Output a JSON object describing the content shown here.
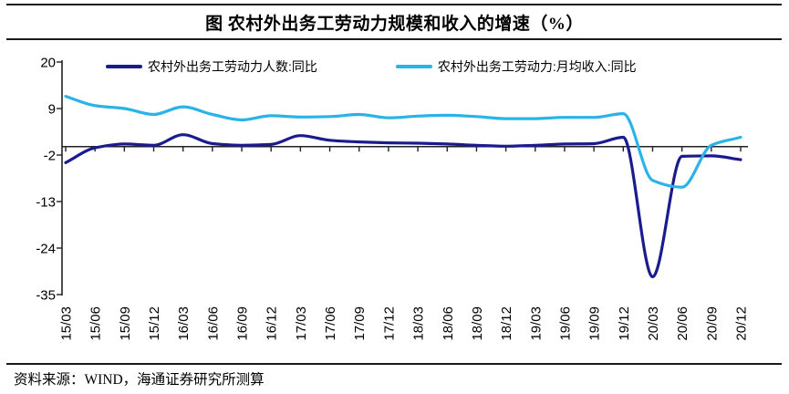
{
  "title": "图 农村外出务工劳动力规模和收入的增速（%）",
  "source_note": "资料来源：WIND，海通证券研究所测算",
  "colors": {
    "workers_line": "#1a1c8e",
    "income_line": "#29b3e6",
    "axis": "#222222",
    "rule": "#1a1a1a"
  },
  "legend": [
    {
      "label": "农村外出务工劳动力人数:同比",
      "color": "#1a1c8e"
    },
    {
      "label": "农村外出务工劳动力:月均收入:同比",
      "color": "#29b3e6"
    }
  ],
  "chart_data": {
    "type": "line",
    "title": "图 农村外出务工劳动力规模和收入的增速（%）",
    "unit": "%",
    "xlabel": "",
    "ylabel": "",
    "ylim": [
      -35,
      20
    ],
    "yticks": [
      20,
      9,
      -2,
      -13,
      -24,
      -35
    ],
    "grid": false,
    "zero_line": true,
    "legend_position": "top",
    "x_label_rotation": -90,
    "categories": [
      "15/03",
      "15/06",
      "15/09",
      "15/12",
      "16/03",
      "16/06",
      "16/09",
      "16/12",
      "17/03",
      "17/06",
      "17/09",
      "17/12",
      "18/03",
      "18/06",
      "18/09",
      "18/12",
      "19/03",
      "19/06",
      "19/09",
      "19/12",
      "20/03",
      "20/06",
      "20/09",
      "20/12"
    ],
    "series": [
      {
        "name": "农村外出务工劳动力人数:同比",
        "color": "#1a1c8e",
        "values": [
          -3.8,
          -0.3,
          0.6,
          0.3,
          2.8,
          0.7,
          0.3,
          0.5,
          2.6,
          1.5,
          1.1,
          0.9,
          0.8,
          0.6,
          0.3,
          0.1,
          0.3,
          0.6,
          0.7,
          2.2,
          -30.8,
          -2.3,
          -2.2,
          -3.1
        ]
      },
      {
        "name": "农村外出务工劳动力:月均收入:同比",
        "color": "#29b3e6",
        "values": [
          11.9,
          9.7,
          9.0,
          7.6,
          9.4,
          7.6,
          6.3,
          7.3,
          7.0,
          7.1,
          7.6,
          6.8,
          7.2,
          7.4,
          7.1,
          6.6,
          6.6,
          6.9,
          6.9,
          7.8,
          -8.0,
          -9.6,
          0.3,
          2.2
        ]
      }
    ]
  }
}
